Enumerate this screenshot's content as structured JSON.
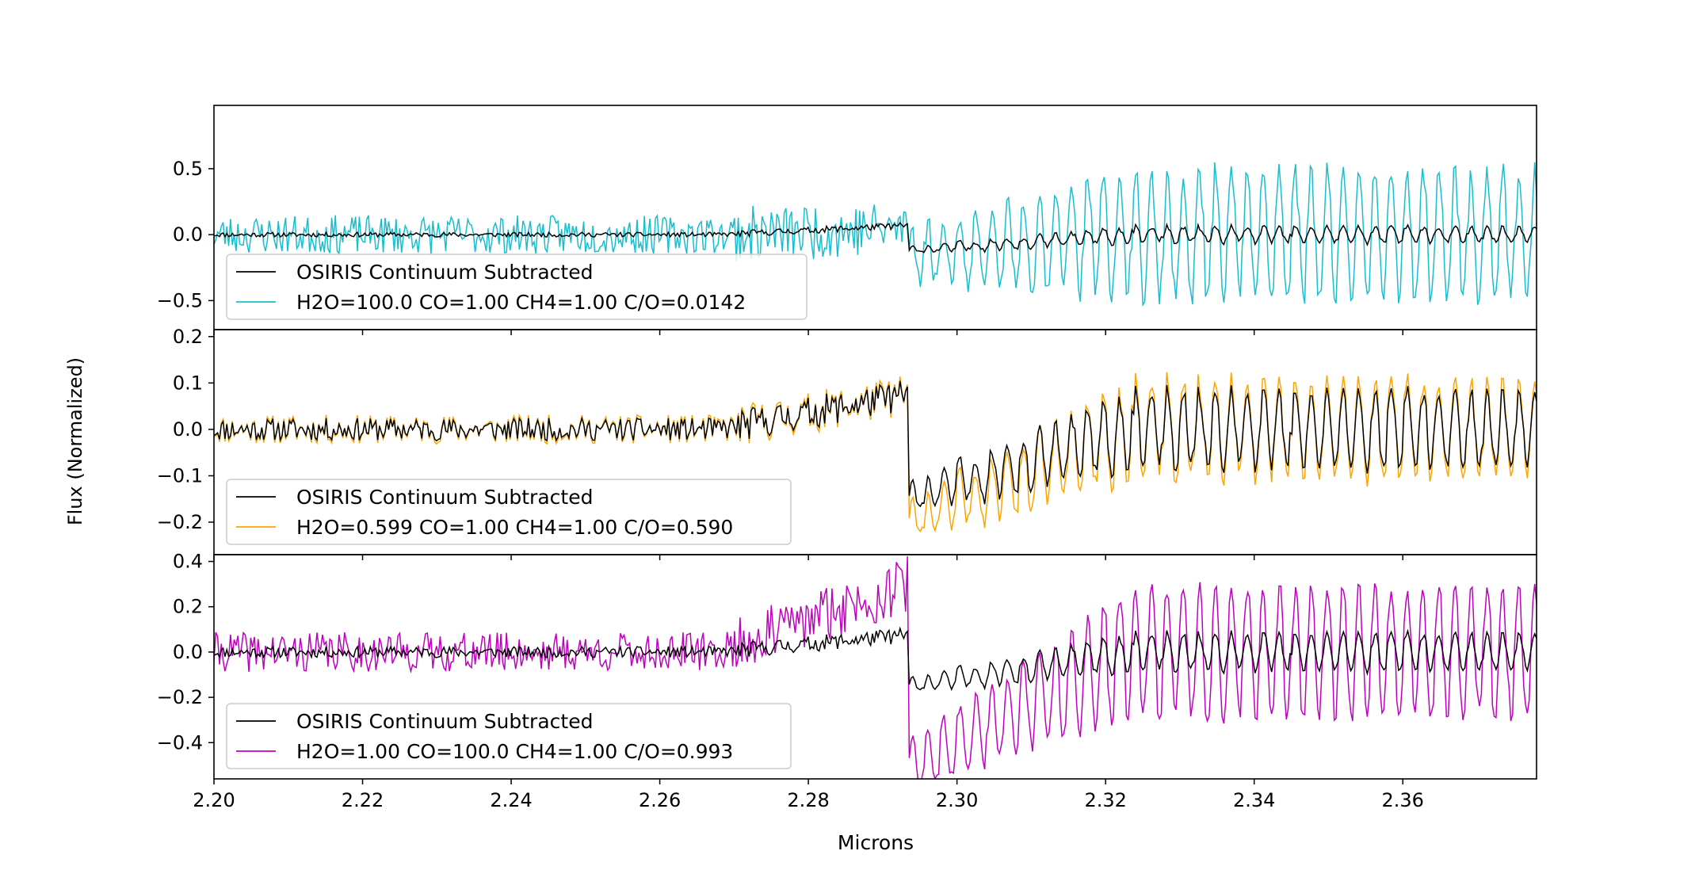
{
  "figure": {
    "ylabel": "Flux (Normalized)",
    "xlabel": "Microns"
  },
  "chart_data": [
    {
      "type": "line",
      "name": "panel-top",
      "xlim": [
        2.2,
        2.378
      ],
      "ylim": [
        -0.72,
        0.98
      ],
      "xticks": [
        2.2,
        2.22,
        2.24,
        2.26,
        2.28,
        2.3,
        2.32,
        2.34,
        2.36
      ],
      "yticks": [
        -0.5,
        0.0,
        0.5
      ],
      "ytick_labels": [
        "−0.5",
        "0.0",
        "0.5"
      ],
      "legend_position": "lower-left",
      "series": [
        {
          "name": "OSIRIS Continuum Subtracted",
          "color": "#000000",
          "amplitude": 0.05,
          "dip": 0.12,
          "trend": 0.07,
          "seed": 11,
          "jitter": 0.04
        },
        {
          "name": "H2O=100.0 CO=1.00 CH4=1.00 C/O=0.0142",
          "color": "#17becf",
          "amplitude": 0.42,
          "dip": 0.15,
          "trend": 0.05,
          "seed": 23,
          "jitter": 0.12
        }
      ]
    },
    {
      "type": "line",
      "name": "panel-middle",
      "xlim": [
        2.2,
        2.378
      ],
      "ylim": [
        -0.27,
        0.215
      ],
      "xticks": [
        2.2,
        2.22,
        2.24,
        2.26,
        2.28,
        2.3,
        2.32,
        2.34,
        2.36
      ],
      "yticks": [
        -0.2,
        -0.1,
        0.0,
        0.1,
        0.2
      ],
      "ytick_labels": [
        "−0.2",
        "−0.1",
        "0.0",
        "0.1",
        "0.2"
      ],
      "legend_position": "lower-left",
      "series": [
        {
          "name": "OSIRIS Continuum Subtracted",
          "color": "#000000",
          "amplitude": 0.07,
          "dip": 0.15,
          "trend": 0.075,
          "seed": 11,
          "jitter": 0.03
        },
        {
          "name": "H2O=0.599 CO=1.00 CH4=1.00 C/O=0.590",
          "color": "#ffa500",
          "amplitude": 0.09,
          "dip": 0.2,
          "trend": 0.075,
          "seed": 11,
          "jitter": 0.04
        }
      ]
    },
    {
      "type": "line",
      "name": "panel-bottom",
      "xlim": [
        2.2,
        2.378
      ],
      "ylim": [
        -0.56,
        0.43
      ],
      "xticks": [
        2.2,
        2.22,
        2.24,
        2.26,
        2.28,
        2.3,
        2.32,
        2.34,
        2.36
      ],
      "yticks": [
        -0.4,
        -0.2,
        0.0,
        0.2,
        0.4
      ],
      "ytick_labels": [
        "−0.4",
        "−0.2",
        "0.0",
        "0.2",
        "0.4"
      ],
      "legend_position": "lower-left",
      "series": [
        {
          "name": "OSIRIS Continuum Subtracted",
          "color": "#000000",
          "amplitude": 0.07,
          "dip": 0.15,
          "trend": 0.075,
          "seed": 11,
          "jitter": 0.03
        },
        {
          "name": "H2O=1.00 CO=100.0 CH4=1.00 C/O=0.993",
          "color": "#bf00bf",
          "amplitude": 0.25,
          "dip": 0.5,
          "trend": 0.3,
          "seed": 41,
          "jitter": 0.05
        }
      ]
    }
  ]
}
